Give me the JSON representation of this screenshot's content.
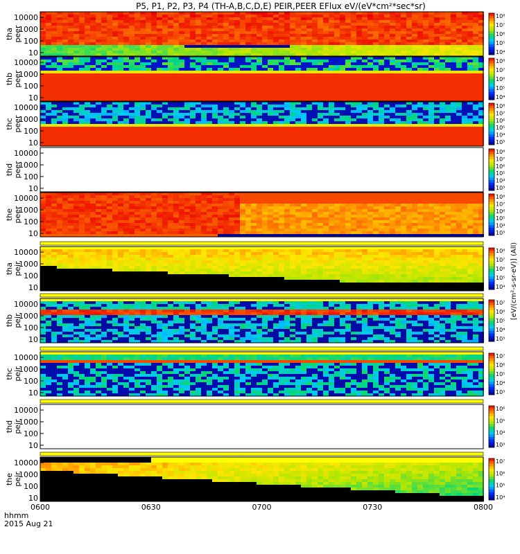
{
  "chart_data": {
    "type": "heatmap",
    "title": "P5, P1, P2, P3, P4 (TH-A,B,C,D,E) PEIR,PEER EFlux eV/(eV*cm²*sec*sr)",
    "x_axis": {
      "tick_labels": [
        "0600",
        "0630",
        "0700",
        "0730",
        "0800"
      ],
      "date": "2015 Aug 21",
      "label_top": "hhmm"
    },
    "y_axis": {
      "scale": "log",
      "range_ev": [
        5,
        30000
      ],
      "tick_labels": [
        "10",
        "100",
        "1000",
        "10000"
      ]
    },
    "colorbar_label": "[eV/(cm²-s-sr-eV)] (All)",
    "panels": [
      {
        "name": "tha peer",
        "label1": "tha",
        "label2": "peer",
        "regime": "tha_peer",
        "colorbar_ticks": [
          "10⁴",
          "10⁵",
          "10⁶",
          "10⁷",
          "10⁸"
        ]
      },
      {
        "name": "thb peer",
        "label1": "thb",
        "label2": "peer",
        "regime": "band_red",
        "colorbar_ticks": [
          "10⁴",
          "10⁵",
          "10⁶",
          "10⁷",
          "10⁸"
        ]
      },
      {
        "name": "thc peer",
        "label1": "thc",
        "label2": "peer",
        "regime": "band_red2",
        "colorbar_ticks": [
          "10³",
          "10⁴",
          "10⁵",
          "10⁶",
          "10⁷",
          "10⁸"
        ]
      },
      {
        "name": "thd peer",
        "label1": "thd",
        "label2": "peer",
        "regime": "empty",
        "colorbar_ticks": [
          "10³",
          "10⁴",
          "10⁵",
          "10⁶",
          "10⁷",
          "10⁸"
        ]
      },
      {
        "name": "the peer",
        "label1": "the",
        "label2": "peer",
        "regime": "the_peer",
        "colorbar_ticks": [
          "10³",
          "10⁴",
          "10⁵",
          "10⁶",
          "10⁷",
          "10⁸"
        ]
      },
      {
        "name": "tha peir",
        "label1": "tha",
        "label2": "peir",
        "regime": "peir_a",
        "colorbar_ticks": [
          "10⁴",
          "10⁵",
          "10⁶",
          "10⁷",
          "10⁸"
        ]
      },
      {
        "name": "thb peir",
        "label1": "thb",
        "label2": "peir",
        "regime": "peir_b",
        "colorbar_ticks": [
          "10³",
          "10⁴",
          "10⁵",
          "10⁶",
          "10⁷"
        ]
      },
      {
        "name": "thc peir",
        "label1": "thc",
        "label2": "peir",
        "regime": "peir_c",
        "colorbar_ticks": [
          "10³",
          "10⁴",
          "10⁵",
          "10⁶",
          "10⁷"
        ]
      },
      {
        "name": "thd peir",
        "label1": "thd",
        "label2": "peir",
        "regime": "empty",
        "colorbar_ticks": [
          "10³",
          "10⁴",
          "10⁵",
          "10⁶"
        ]
      },
      {
        "name": "the peir",
        "label1": "the",
        "label2": "peir",
        "regime": "peir_e",
        "colorbar_ticks": [
          "10⁴",
          "10⁵",
          "10⁶",
          "10⁷"
        ]
      }
    ]
  }
}
